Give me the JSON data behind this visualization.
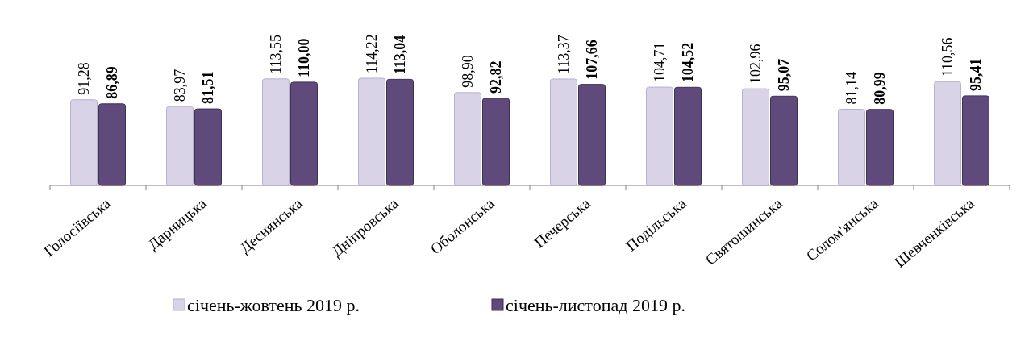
{
  "chart_data": {
    "type": "bar",
    "categories": [
      "Голосіївська",
      "Дарницька",
      "Деснянська",
      "Дніпровська",
      "Оболонська",
      "Печерська",
      "Подільська",
      "Святошинська",
      "Солом'янська",
      "Шевченківська"
    ],
    "series": [
      {
        "name": "січень-жовтень 2019 р.",
        "color": "#d9d3e8",
        "values": [
          91.28,
          83.97,
          113.55,
          114.22,
          98.9,
          113.37,
          104.71,
          102.96,
          81.14,
          110.56
        ],
        "value_labels": [
          "91,28",
          "83,97",
          "113,55",
          "114,22",
          "98,90",
          "113,37",
          "104,71",
          "102,96",
          "81,14",
          "110,56"
        ]
      },
      {
        "name": "січень-листопад 2019 р.",
        "color": "#604a7b",
        "values": [
          86.89,
          81.51,
          110.0,
          113.04,
          92.82,
          107.66,
          104.52,
          95.07,
          80.99,
          95.41
        ],
        "value_labels": [
          "86,89",
          "81,51",
          "110,00",
          "113,04",
          "92,82",
          "107,66",
          "104,52",
          "95,07",
          "80,99",
          "95,41"
        ]
      }
    ],
    "legend": "bottom"
  }
}
